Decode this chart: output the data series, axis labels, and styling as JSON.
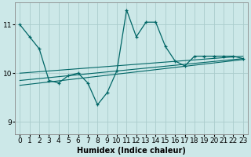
{
  "xlabel": "Humidex (Indice chaleur)",
  "bg_color": "#cce8e8",
  "line_color": "#006666",
  "grid_color": "#aacccc",
  "xlim": [
    -0.5,
    23.5
  ],
  "ylim": [
    8.75,
    11.45
  ],
  "yticks": [
    9,
    10,
    11
  ],
  "xticks": [
    0,
    1,
    2,
    3,
    4,
    5,
    6,
    7,
    8,
    9,
    10,
    11,
    12,
    13,
    14,
    15,
    16,
    17,
    18,
    19,
    20,
    21,
    22,
    23
  ],
  "main_x": [
    0,
    1,
    2,
    3,
    4,
    5,
    6,
    7,
    8,
    9,
    10,
    11,
    12,
    13,
    14,
    15,
    16,
    17,
    18,
    19,
    20,
    21,
    22,
    23
  ],
  "main_y": [
    11.0,
    10.75,
    10.5,
    9.85,
    9.8,
    9.95,
    10.0,
    9.8,
    9.35,
    9.6,
    10.05,
    11.3,
    10.75,
    11.05,
    11.05,
    10.55,
    10.25,
    10.15,
    10.35,
    10.35,
    10.35,
    10.35,
    10.35,
    10.3
  ],
  "trend1_x": [
    0,
    23
  ],
  "trend1_y": [
    10.0,
    10.35
  ],
  "trend2_x": [
    0,
    23
  ],
  "trend2_y": [
    9.85,
    10.3
  ],
  "trend3_x": [
    0,
    23
  ],
  "trend3_y": [
    9.75,
    10.28
  ],
  "xlabel_fontsize": 7,
  "tick_fontsize": 6.5
}
